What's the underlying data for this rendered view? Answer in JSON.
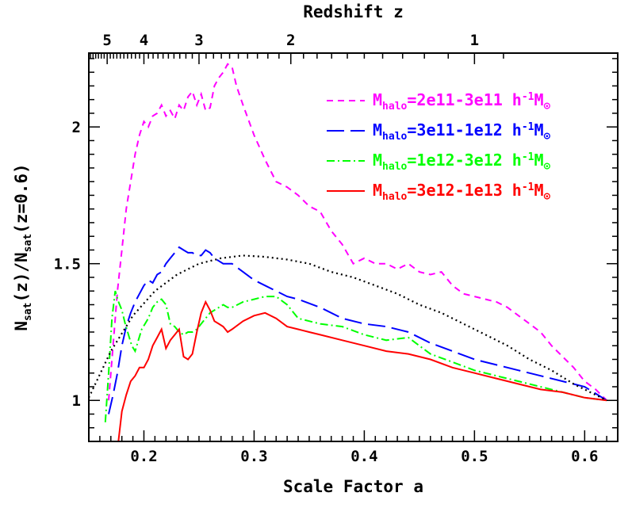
{
  "chart_data": {
    "type": "line",
    "xlabel": "Scale Factor a",
    "ylabel_parts": [
      "N",
      "sat",
      "(z)/N",
      "sat",
      "(z=0.6)"
    ],
    "top_axis_label": "Redshift z",
    "xlim": [
      0.15,
      0.63
    ],
    "ylim": [
      0.85,
      2.27
    ],
    "x_ticks": [
      "0.2",
      "0.3",
      "0.4",
      "0.5",
      "0.6"
    ],
    "y_ticks": [
      "1",
      "1.5",
      "2"
    ],
    "top_ticks": [
      {
        "label": "5",
        "z": 5
      },
      {
        "label": "4",
        "z": 4
      },
      {
        "label": "3",
        "z": 3
      },
      {
        "label": "2",
        "z": 2
      },
      {
        "label": "1",
        "z": 1
      }
    ],
    "legend_position": "top-right",
    "series": [
      {
        "id": "magenta",
        "color": "#ff00ff",
        "dash": "8,6",
        "legend": {
          "a": "M",
          "b": "halo",
          "c": "=2e11-3e11 h",
          "d": "-1",
          "e": "M",
          "f": "⊙"
        },
        "x": [
          0.168,
          0.172,
          0.176,
          0.18,
          0.184,
          0.188,
          0.192,
          0.196,
          0.2,
          0.204,
          0.208,
          0.212,
          0.216,
          0.22,
          0.224,
          0.228,
          0.232,
          0.236,
          0.24,
          0.244,
          0.248,
          0.252,
          0.256,
          0.26,
          0.264,
          0.268,
          0.272,
          0.276,
          0.28,
          0.284,
          0.29,
          0.3,
          0.31,
          0.32,
          0.33,
          0.34,
          0.35,
          0.36,
          0.37,
          0.38,
          0.39,
          0.4,
          0.41,
          0.42,
          0.43,
          0.44,
          0.45,
          0.46,
          0.47,
          0.48,
          0.49,
          0.5,
          0.51,
          0.52,
          0.53,
          0.54,
          0.55,
          0.56,
          0.57,
          0.58,
          0.59,
          0.6,
          0.61,
          0.62
        ],
        "y": [
          1.0,
          1.2,
          1.4,
          1.55,
          1.7,
          1.8,
          1.9,
          1.97,
          2.02,
          2.0,
          2.04,
          2.05,
          2.08,
          2.04,
          2.06,
          2.03,
          2.08,
          2.06,
          2.11,
          2.13,
          2.08,
          2.12,
          2.06,
          2.07,
          2.15,
          2.18,
          2.2,
          2.23,
          2.22,
          2.15,
          2.08,
          1.97,
          1.88,
          1.8,
          1.78,
          1.75,
          1.71,
          1.69,
          1.62,
          1.57,
          1.5,
          1.52,
          1.5,
          1.5,
          1.48,
          1.5,
          1.47,
          1.46,
          1.47,
          1.42,
          1.39,
          1.38,
          1.37,
          1.36,
          1.34,
          1.31,
          1.28,
          1.25,
          1.2,
          1.16,
          1.12,
          1.07,
          1.04,
          1.0
        ]
      },
      {
        "id": "blue",
        "color": "#0000ff",
        "dash": "22,8",
        "legend": {
          "a": "M",
          "b": "halo",
          "c": "=3e11-1e12 h",
          "d": "-1",
          "e": "M",
          "f": "⊙"
        },
        "x": [
          0.168,
          0.172,
          0.176,
          0.18,
          0.184,
          0.188,
          0.192,
          0.196,
          0.2,
          0.204,
          0.208,
          0.212,
          0.216,
          0.22,
          0.224,
          0.228,
          0.232,
          0.236,
          0.24,
          0.244,
          0.248,
          0.252,
          0.256,
          0.26,
          0.264,
          0.268,
          0.272,
          0.276,
          0.28,
          0.29,
          0.3,
          0.31,
          0.32,
          0.33,
          0.34,
          0.36,
          0.38,
          0.4,
          0.42,
          0.44,
          0.46,
          0.48,
          0.5,
          0.52,
          0.54,
          0.56,
          0.58,
          0.6,
          0.62
        ],
        "y": [
          0.95,
          1.02,
          1.1,
          1.2,
          1.27,
          1.32,
          1.36,
          1.39,
          1.42,
          1.44,
          1.43,
          1.46,
          1.47,
          1.5,
          1.52,
          1.54,
          1.56,
          1.55,
          1.54,
          1.54,
          1.53,
          1.53,
          1.55,
          1.54,
          1.52,
          1.51,
          1.5,
          1.5,
          1.5,
          1.47,
          1.44,
          1.42,
          1.4,
          1.38,
          1.37,
          1.34,
          1.3,
          1.28,
          1.27,
          1.25,
          1.21,
          1.18,
          1.15,
          1.13,
          1.11,
          1.09,
          1.07,
          1.05,
          1.0
        ]
      },
      {
        "id": "green",
        "color": "#00ff00",
        "dash": "10,4,2,4",
        "legend": {
          "a": "M",
          "b": "halo",
          "c": "=1e12-3e12 h",
          "d": "-1",
          "e": "M",
          "f": "⊙"
        },
        "x": [
          0.165,
          0.168,
          0.171,
          0.174,
          0.177,
          0.18,
          0.183,
          0.186,
          0.189,
          0.192,
          0.195,
          0.198,
          0.201,
          0.204,
          0.208,
          0.212,
          0.216,
          0.22,
          0.224,
          0.228,
          0.232,
          0.236,
          0.24,
          0.244,
          0.248,
          0.252,
          0.256,
          0.26,
          0.264,
          0.268,
          0.272,
          0.276,
          0.28,
          0.29,
          0.3,
          0.31,
          0.32,
          0.33,
          0.34,
          0.35,
          0.36,
          0.38,
          0.4,
          0.42,
          0.44,
          0.46,
          0.48,
          0.5,
          0.52,
          0.54,
          0.56,
          0.58,
          0.6,
          0.62
        ],
        "y": [
          0.92,
          1.1,
          1.3,
          1.4,
          1.36,
          1.33,
          1.28,
          1.24,
          1.2,
          1.18,
          1.22,
          1.26,
          1.28,
          1.3,
          1.34,
          1.36,
          1.37,
          1.35,
          1.28,
          1.27,
          1.25,
          1.24,
          1.25,
          1.25,
          1.26,
          1.28,
          1.3,
          1.32,
          1.33,
          1.34,
          1.35,
          1.34,
          1.34,
          1.36,
          1.37,
          1.38,
          1.38,
          1.35,
          1.3,
          1.29,
          1.28,
          1.27,
          1.24,
          1.22,
          1.23,
          1.17,
          1.14,
          1.11,
          1.09,
          1.07,
          1.05,
          1.03,
          1.01,
          1.0
        ]
      },
      {
        "id": "red",
        "color": "#ff0000",
        "dash": "none",
        "legend": {
          "a": "M",
          "b": "halo",
          "c": "=3e12-1e13 h",
          "d": "-1",
          "e": "M",
          "f": "⊙"
        },
        "x": [
          0.176,
          0.18,
          0.184,
          0.188,
          0.192,
          0.196,
          0.2,
          0.204,
          0.208,
          0.212,
          0.216,
          0.22,
          0.224,
          0.228,
          0.232,
          0.236,
          0.24,
          0.244,
          0.248,
          0.252,
          0.256,
          0.26,
          0.264,
          0.268,
          0.272,
          0.276,
          0.28,
          0.29,
          0.3,
          0.31,
          0.32,
          0.33,
          0.34,
          0.35,
          0.36,
          0.38,
          0.4,
          0.42,
          0.44,
          0.46,
          0.48,
          0.5,
          0.52,
          0.54,
          0.56,
          0.58,
          0.6,
          0.62
        ],
        "y": [
          0.82,
          0.96,
          1.02,
          1.07,
          1.09,
          1.12,
          1.12,
          1.15,
          1.2,
          1.23,
          1.26,
          1.19,
          1.22,
          1.24,
          1.26,
          1.16,
          1.15,
          1.17,
          1.25,
          1.32,
          1.36,
          1.33,
          1.29,
          1.28,
          1.27,
          1.25,
          1.26,
          1.29,
          1.31,
          1.32,
          1.3,
          1.27,
          1.26,
          1.25,
          1.24,
          1.22,
          1.2,
          1.18,
          1.17,
          1.15,
          1.12,
          1.1,
          1.08,
          1.06,
          1.04,
          1.03,
          1.01,
          1.0
        ]
      },
      {
        "id": "black",
        "color": "#000000",
        "dash": "2,4",
        "legend": null,
        "x": [
          0.15,
          0.17,
          0.19,
          0.21,
          0.23,
          0.25,
          0.27,
          0.29,
          0.31,
          0.33,
          0.35,
          0.37,
          0.39,
          0.41,
          0.43,
          0.45,
          0.47,
          0.49,
          0.51,
          0.53,
          0.55,
          0.57,
          0.59,
          0.61,
          0.62
        ],
        "y": [
          1.01,
          1.18,
          1.31,
          1.4,
          1.46,
          1.5,
          1.52,
          1.53,
          1.525,
          1.515,
          1.5,
          1.47,
          1.45,
          1.42,
          1.39,
          1.35,
          1.32,
          1.28,
          1.24,
          1.2,
          1.15,
          1.11,
          1.06,
          1.02,
          1.0
        ]
      }
    ]
  }
}
